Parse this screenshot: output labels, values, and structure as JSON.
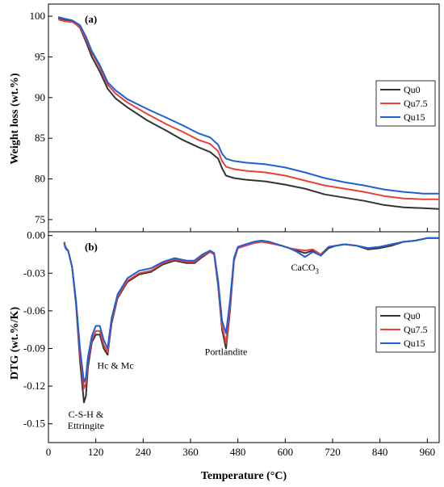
{
  "chart_data": [
    {
      "type": "line",
      "panel_label": "(a)",
      "xlabel": "",
      "ylabel": "Weight loss (wt.%)",
      "xlim": [
        0,
        990
      ],
      "ylim": [
        73.5,
        101.5
      ],
      "xticks": [
        0,
        120,
        240,
        360,
        480,
        600,
        720,
        840,
        960
      ],
      "yticks": [
        75,
        80,
        85,
        90,
        95,
        100
      ],
      "legend_position": "right",
      "series": [
        {
          "name": "Qu0",
          "color": "#333333",
          "points": [
            [
              25,
              99.8
            ],
            [
              40,
              99.6
            ],
            [
              60,
              99.4
            ],
            [
              80,
              98.6
            ],
            [
              95,
              96.9
            ],
            [
              110,
              95.0
            ],
            [
              130,
              93.2
            ],
            [
              150,
              91.1
            ],
            [
              170,
              89.9
            ],
            [
              200,
              88.8
            ],
            [
              250,
              87.2
            ],
            [
              300,
              85.9
            ],
            [
              340,
              84.8
            ],
            [
              380,
              83.9
            ],
            [
              410,
              83.3
            ],
            [
              430,
              82.5
            ],
            [
              440,
              81.3
            ],
            [
              450,
              80.4
            ],
            [
              470,
              80.1
            ],
            [
              500,
              79.9
            ],
            [
              550,
              79.7
            ],
            [
              600,
              79.3
            ],
            [
              650,
              78.8
            ],
            [
              700,
              78.1
            ],
            [
              750,
              77.7
            ],
            [
              800,
              77.3
            ],
            [
              850,
              76.8
            ],
            [
              900,
              76.5
            ],
            [
              950,
              76.4
            ],
            [
              990,
              76.3
            ]
          ]
        },
        {
          "name": "Qu7.5",
          "color": "#e8413a",
          "points": [
            [
              25,
              99.6
            ],
            [
              40,
              99.4
            ],
            [
              60,
              99.3
            ],
            [
              80,
              98.7
            ],
            [
              95,
              97.2
            ],
            [
              110,
              95.5
            ],
            [
              130,
              93.7
            ],
            [
              150,
              91.6
            ],
            [
              170,
              90.5
            ],
            [
              200,
              89.4
            ],
            [
              250,
              88.0
            ],
            [
              300,
              86.7
            ],
            [
              340,
              85.8
            ],
            [
              380,
              84.8
            ],
            [
              410,
              84.3
            ],
            [
              430,
              83.4
            ],
            [
              440,
              82.2
            ],
            [
              450,
              81.5
            ],
            [
              470,
              81.2
            ],
            [
              500,
              81.0
            ],
            [
              550,
              80.8
            ],
            [
              600,
              80.4
            ],
            [
              650,
              79.8
            ],
            [
              700,
              79.2
            ],
            [
              750,
              78.8
            ],
            [
              800,
              78.4
            ],
            [
              850,
              77.9
            ],
            [
              900,
              77.6
            ],
            [
              950,
              77.5
            ],
            [
              990,
              77.5
            ]
          ]
        },
        {
          "name": "Qu15",
          "color": "#1f5fd6",
          "points": [
            [
              25,
              99.9
            ],
            [
              40,
              99.7
            ],
            [
              60,
              99.5
            ],
            [
              80,
              98.9
            ],
            [
              95,
              97.5
            ],
            [
              110,
              95.7
            ],
            [
              130,
              94.0
            ],
            [
              150,
              91.9
            ],
            [
              170,
              90.9
            ],
            [
              200,
              89.8
            ],
            [
              250,
              88.6
            ],
            [
              300,
              87.5
            ],
            [
              340,
              86.6
            ],
            [
              380,
              85.6
            ],
            [
              410,
              85.1
            ],
            [
              430,
              84.2
            ],
            [
              440,
              83.1
            ],
            [
              450,
              82.5
            ],
            [
              470,
              82.2
            ],
            [
              500,
              82.0
            ],
            [
              550,
              81.8
            ],
            [
              600,
              81.4
            ],
            [
              650,
              80.8
            ],
            [
              700,
              80.1
            ],
            [
              750,
              79.6
            ],
            [
              800,
              79.2
            ],
            [
              850,
              78.7
            ],
            [
              900,
              78.4
            ],
            [
              950,
              78.2
            ],
            [
              990,
              78.2
            ]
          ]
        }
      ]
    },
    {
      "type": "line",
      "panel_label": "(b)",
      "xlabel": "Temperature (°C)",
      "ylabel": "DTG (wt.%/K)",
      "xlim": [
        0,
        990
      ],
      "ylim": [
        -0.165,
        0.003
      ],
      "xticks": [
        0,
        120,
        240,
        360,
        480,
        600,
        720,
        840,
        960
      ],
      "yticks": [
        0.0,
        -0.03,
        -0.06,
        -0.09,
        -0.12,
        -0.15
      ],
      "ytick_labels": [
        "0.00",
        "-0.03",
        "-0.06",
        "-0.09",
        "-0.12",
        "-0.15"
      ],
      "legend_position": "right",
      "annotations": [
        {
          "text": "C-S-H &",
          "x": 95,
          "y": -0.145
        },
        {
          "text": "Ettringite",
          "x": 95,
          "y": -0.154
        },
        {
          "text": "Hc & Mc",
          "x": 170,
          "y": -0.106
        },
        {
          "text": "Portlandite",
          "x": 450,
          "y": -0.095
        },
        {
          "text": "CaCO",
          "sub": "3",
          "x": 650,
          "y": -0.028
        }
      ],
      "series": [
        {
          "name": "Qu0",
          "color": "#333333",
          "points": [
            [
              40,
              -0.005
            ],
            [
              42,
              -0.008
            ],
            [
              45,
              -0.01
            ],
            [
              50,
              -0.012
            ],
            [
              60,
              -0.025
            ],
            [
              70,
              -0.055
            ],
            [
              80,
              -0.1
            ],
            [
              90,
              -0.133
            ],
            [
              95,
              -0.128
            ],
            [
              100,
              -0.105
            ],
            [
              110,
              -0.085
            ],
            [
              120,
              -0.079
            ],
            [
              130,
              -0.079
            ],
            [
              140,
              -0.09
            ],
            [
              150,
              -0.095
            ],
            [
              160,
              -0.07
            ],
            [
              175,
              -0.05
            ],
            [
              200,
              -0.037
            ],
            [
              230,
              -0.031
            ],
            [
              260,
              -0.029
            ],
            [
              290,
              -0.023
            ],
            [
              320,
              -0.02
            ],
            [
              350,
              -0.022
            ],
            [
              370,
              -0.022
            ],
            [
              390,
              -0.017
            ],
            [
              410,
              -0.013
            ],
            [
              420,
              -0.015
            ],
            [
              430,
              -0.04
            ],
            [
              440,
              -0.075
            ],
            [
              450,
              -0.09
            ],
            [
              460,
              -0.06
            ],
            [
              470,
              -0.02
            ],
            [
              480,
              -0.01
            ],
            [
              500,
              -0.008
            ],
            [
              520,
              -0.006
            ],
            [
              540,
              -0.005
            ],
            [
              560,
              -0.006
            ],
            [
              590,
              -0.008
            ],
            [
              610,
              -0.01
            ],
            [
              630,
              -0.012
            ],
            [
              650,
              -0.014
            ],
            [
              670,
              -0.012
            ],
            [
              690,
              -0.016
            ],
            [
              710,
              -0.01
            ],
            [
              730,
              -0.008
            ],
            [
              750,
              -0.007
            ],
            [
              780,
              -0.008
            ],
            [
              810,
              -0.011
            ],
            [
              840,
              -0.01
            ],
            [
              870,
              -0.008
            ],
            [
              900,
              -0.005
            ],
            [
              930,
              -0.004
            ],
            [
              960,
              -0.002
            ],
            [
              990,
              -0.002
            ]
          ]
        },
        {
          "name": "Qu7.5",
          "color": "#e8413a",
          "points": [
            [
              40,
              -0.005
            ],
            [
              42,
              -0.008
            ],
            [
              45,
              -0.01
            ],
            [
              50,
              -0.012
            ],
            [
              60,
              -0.025
            ],
            [
              70,
              -0.053
            ],
            [
              80,
              -0.095
            ],
            [
              90,
              -0.122
            ],
            [
              95,
              -0.118
            ],
            [
              100,
              -0.1
            ],
            [
              110,
              -0.083
            ],
            [
              120,
              -0.076
            ],
            [
              130,
              -0.076
            ],
            [
              140,
              -0.087
            ],
            [
              150,
              -0.093
            ],
            [
              160,
              -0.068
            ],
            [
              175,
              -0.049
            ],
            [
              200,
              -0.036
            ],
            [
              230,
              -0.03
            ],
            [
              260,
              -0.028
            ],
            [
              290,
              -0.022
            ],
            [
              320,
              -0.019
            ],
            [
              350,
              -0.021
            ],
            [
              370,
              -0.021
            ],
            [
              390,
              -0.016
            ],
            [
              410,
              -0.013
            ],
            [
              420,
              -0.015
            ],
            [
              430,
              -0.038
            ],
            [
              440,
              -0.072
            ],
            [
              450,
              -0.086
            ],
            [
              460,
              -0.057
            ],
            [
              470,
              -0.019
            ],
            [
              480,
              -0.01
            ],
            [
              500,
              -0.008
            ],
            [
              520,
              -0.006
            ],
            [
              540,
              -0.005
            ],
            [
              560,
              -0.006
            ],
            [
              590,
              -0.008
            ],
            [
              610,
              -0.01
            ],
            [
              630,
              -0.011
            ],
            [
              650,
              -0.012
            ],
            [
              670,
              -0.011
            ],
            [
              690,
              -0.015
            ],
            [
              710,
              -0.009
            ],
            [
              730,
              -0.008
            ],
            [
              750,
              -0.007
            ],
            [
              780,
              -0.008
            ],
            [
              810,
              -0.01
            ],
            [
              840,
              -0.009
            ],
            [
              870,
              -0.007
            ],
            [
              900,
              -0.005
            ],
            [
              930,
              -0.004
            ],
            [
              960,
              -0.002
            ],
            [
              990,
              -0.002
            ]
          ]
        },
        {
          "name": "Qu15",
          "color": "#1f5fd6",
          "points": [
            [
              40,
              -0.006
            ],
            [
              42,
              -0.009
            ],
            [
              45,
              -0.011
            ],
            [
              50,
              -0.012
            ],
            [
              60,
              -0.025
            ],
            [
              70,
              -0.052
            ],
            [
              80,
              -0.09
            ],
            [
              90,
              -0.117
            ],
            [
              95,
              -0.113
            ],
            [
              100,
              -0.097
            ],
            [
              110,
              -0.08
            ],
            [
              120,
              -0.072
            ],
            [
              130,
              -0.072
            ],
            [
              140,
              -0.083
            ],
            [
              150,
              -0.09
            ],
            [
              160,
              -0.066
            ],
            [
              175,
              -0.047
            ],
            [
              200,
              -0.034
            ],
            [
              230,
              -0.028
            ],
            [
              260,
              -0.026
            ],
            [
              290,
              -0.021
            ],
            [
              320,
              -0.018
            ],
            [
              350,
              -0.02
            ],
            [
              370,
              -0.02
            ],
            [
              390,
              -0.015
            ],
            [
              410,
              -0.012
            ],
            [
              420,
              -0.014
            ],
            [
              430,
              -0.036
            ],
            [
              440,
              -0.068
            ],
            [
              450,
              -0.078
            ],
            [
              460,
              -0.052
            ],
            [
              470,
              -0.018
            ],
            [
              480,
              -0.009
            ],
            [
              500,
              -0.007
            ],
            [
              520,
              -0.005
            ],
            [
              540,
              -0.004
            ],
            [
              560,
              -0.005
            ],
            [
              590,
              -0.008
            ],
            [
              610,
              -0.01
            ],
            [
              630,
              -0.013
            ],
            [
              650,
              -0.017
            ],
            [
              670,
              -0.013
            ],
            [
              690,
              -0.016
            ],
            [
              710,
              -0.009
            ],
            [
              730,
              -0.008
            ],
            [
              750,
              -0.007
            ],
            [
              780,
              -0.008
            ],
            [
              810,
              -0.01
            ],
            [
              840,
              -0.009
            ],
            [
              870,
              -0.007
            ],
            [
              900,
              -0.005
            ],
            [
              930,
              -0.004
            ],
            [
              960,
              -0.002
            ],
            [
              990,
              -0.002
            ]
          ]
        }
      ]
    }
  ]
}
